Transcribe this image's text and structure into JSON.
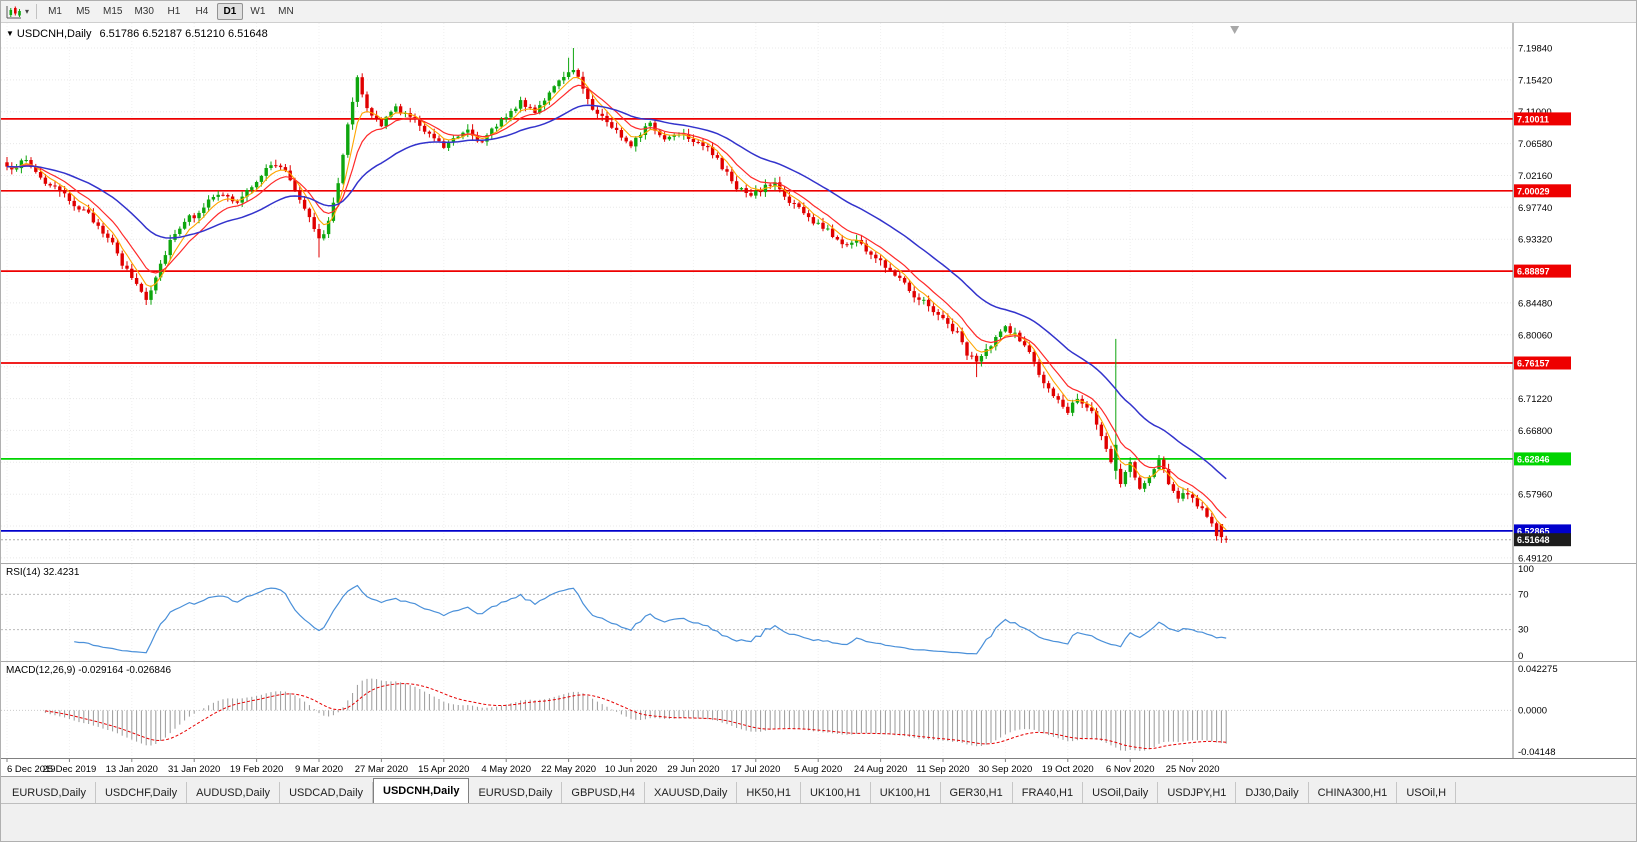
{
  "toolbar": {
    "timeframes": [
      {
        "label": "M1",
        "active": false
      },
      {
        "label": "M5",
        "active": false
      },
      {
        "label": "M15",
        "active": false
      },
      {
        "label": "M30",
        "active": false
      },
      {
        "label": "H1",
        "active": false
      },
      {
        "label": "H4",
        "active": false
      },
      {
        "label": "D1",
        "active": true
      },
      {
        "label": "W1",
        "active": false
      },
      {
        "label": "MN",
        "active": false
      }
    ],
    "caret": "▾"
  },
  "chart": {
    "collapse_arrow": "▼",
    "symbol_title": "USDCNH,Daily",
    "ohlc_text": "6.51786 6.52187 6.51210 6.51648"
  },
  "chart_data": {
    "type": "candlestick",
    "symbol": "USDCNH",
    "timeframe": "Daily",
    "ohlc": {
      "open": "6.51786",
      "high": "6.52187",
      "low": "6.51210",
      "close": "6.51648"
    },
    "bid": 6.51648,
    "bid_label": "6.51648",
    "candle_count": 255,
    "x_axis": {
      "labels": [
        "6 Dec 2019",
        "25 Dec 2019",
        "13 Jan 2020",
        "31 Jan 2020",
        "19 Feb 2020",
        "9 Mar 2020",
        "27 Mar 2020",
        "15 Apr 2020",
        "4 May 2020",
        "22 May 2020",
        "10 Jun 2020",
        "29 Jun 2020",
        "17 Jul 2020",
        "5 Aug 2020",
        "24 Aug 2020",
        "11 Sep 2020",
        "30 Sep 2020",
        "19 Oct 2020",
        "6 Nov 2020",
        "25 Nov 2020"
      ]
    },
    "y_axis": {
      "ticks": [
        "7.19840",
        "7.15420",
        "7.11000",
        "7.06580",
        "7.02160",
        "6.97740",
        "6.93320",
        "6.84480",
        "6.80060",
        "6.71220",
        "6.66800",
        "6.57960",
        "6.49120"
      ],
      "hidden_grid": [
        6.889,
        6.7564,
        6.6238,
        6.5354
      ]
    },
    "hlines": [
      {
        "price": 7.10011,
        "label": "7.10011",
        "color": "#EE0000"
      },
      {
        "price": 7.00029,
        "label": "7.00029",
        "color": "#EE0000"
      },
      {
        "price": 6.88897,
        "label": "6.88897",
        "color": "#EE0000"
      },
      {
        "price": 6.76157,
        "label": "6.76157",
        "color": "#EE0000"
      },
      {
        "price": 6.62846,
        "label": "6.62846",
        "color": "#00D400"
      },
      {
        "price": 6.52865,
        "label": "6.52865",
        "color": "#0000CC"
      }
    ],
    "price_anchors": [
      [
        0,
        7.03
      ],
      [
        4,
        7.042
      ],
      [
        8,
        7.012
      ],
      [
        13,
        6.988
      ],
      [
        17,
        6.966
      ],
      [
        21,
        6.938
      ],
      [
        24,
        6.898
      ],
      [
        27,
        6.872
      ],
      [
        29,
        6.85
      ],
      [
        31,
        6.882
      ],
      [
        34,
        6.932
      ],
      [
        37,
        6.96
      ],
      [
        39,
        6.966
      ],
      [
        42,
        6.986
      ],
      [
        45,
        6.996
      ],
      [
        48,
        6.982
      ],
      [
        52,
        7.016
      ],
      [
        55,
        7.036
      ],
      [
        58,
        7.03
      ],
      [
        60,
        7.002
      ],
      [
        63,
        6.967
      ],
      [
        65,
        6.932
      ],
      [
        67,
        6.956
      ],
      [
        69,
        7.012
      ],
      [
        71,
        7.096
      ],
      [
        73,
        7.156
      ],
      [
        75,
        7.112
      ],
      [
        78,
        7.092
      ],
      [
        81,
        7.116
      ],
      [
        84,
        7.102
      ],
      [
        87,
        7.086
      ],
      [
        89,
        7.076
      ],
      [
        91,
        7.062
      ],
      [
        93,
        7.076
      ],
      [
        96,
        7.086
      ],
      [
        99,
        7.066
      ],
      [
        102,
        7.092
      ],
      [
        104,
        7.106
      ],
      [
        107,
        7.122
      ],
      [
        110,
        7.112
      ],
      [
        113,
        7.136
      ],
      [
        116,
        7.156
      ],
      [
        118,
        7.172
      ],
      [
        120,
        7.142
      ],
      [
        122,
        7.116
      ],
      [
        125,
        7.096
      ],
      [
        128,
        7.076
      ],
      [
        130,
        7.066
      ],
      [
        132,
        7.082
      ],
      [
        134,
        7.092
      ],
      [
        137,
        7.072
      ],
      [
        140,
        7.082
      ],
      [
        143,
        7.072
      ],
      [
        146,
        7.062
      ],
      [
        149,
        7.032
      ],
      [
        152,
        7.006
      ],
      [
        155,
        6.992
      ],
      [
        157,
        7.002
      ],
      [
        160,
        7.012
      ],
      [
        162,
        6.992
      ],
      [
        165,
        6.976
      ],
      [
        168,
        6.956
      ],
      [
        171,
        6.946
      ],
      [
        174,
        6.926
      ],
      [
        177,
        6.932
      ],
      [
        180,
        6.912
      ],
      [
        183,
        6.896
      ],
      [
        186,
        6.882
      ],
      [
        189,
        6.856
      ],
      [
        192,
        6.842
      ],
      [
        195,
        6.822
      ],
      [
        198,
        6.802
      ],
      [
        200,
        6.776
      ],
      [
        202,
        6.762
      ],
      [
        205,
        6.786
      ],
      [
        208,
        6.812
      ],
      [
        210,
        6.802
      ],
      [
        213,
        6.776
      ],
      [
        215,
        6.746
      ],
      [
        218,
        6.712
      ],
      [
        221,
        6.696
      ],
      [
        223,
        6.716
      ],
      [
        226,
        6.692
      ],
      [
        228,
        6.656
      ],
      [
        230,
        6.626
      ],
      [
        232,
        6.596
      ],
      [
        234,
        6.622
      ],
      [
        236,
        6.586
      ],
      [
        238,
        6.602
      ],
      [
        240,
        6.626
      ],
      [
        242,
        6.596
      ],
      [
        244,
        6.576
      ],
      [
        246,
        6.582
      ],
      [
        248,
        6.566
      ],
      [
        250,
        6.546
      ],
      [
        252,
        6.524
      ],
      [
        254,
        6.5165
      ]
    ],
    "special_candles": [
      {
        "i": 29,
        "l": 6.842
      },
      {
        "i": 65,
        "l": 6.908
      },
      {
        "i": 117,
        "h": 7.185
      },
      {
        "i": 118,
        "h": 7.1984
      },
      {
        "i": 202,
        "l": 6.742
      },
      {
        "i": 231,
        "o": 6.612,
        "c": 6.648,
        "h": 6.795,
        "l": 6.6
      },
      {
        "i": 253,
        "o": 6.538,
        "c": 6.52,
        "l": 6.512
      },
      {
        "i": 254,
        "o": 6.51786,
        "h": 6.52187,
        "l": 6.5121,
        "c": 6.51648
      }
    ],
    "moving_averages": [
      {
        "period": 5,
        "color": "#FFA500",
        "width": 1.1
      },
      {
        "period": 10,
        "color": "#FF2A2A",
        "width": 1.2
      },
      {
        "period": 30,
        "color": "#3333CC",
        "width": 1.5
      }
    ],
    "colors": {
      "up": "#0EA60E",
      "down": "#E00000"
    },
    "rsi": {
      "label": "RSI(14) 32.4231",
      "period": 14,
      "value": 32.4231,
      "levels": [
        70,
        30
      ],
      "axis_labels": [
        "100",
        "70",
        "30",
        "0"
      ],
      "line_color": "#4A90D9"
    },
    "macd": {
      "label": "MACD(12,26,9) -0.029164 -0.026846",
      "fast": 12,
      "slow": 26,
      "signal": 9,
      "values": [
        "-0.029164",
        "-0.026846"
      ],
      "axis_labels": [
        "0.042275",
        "0.0000",
        "-0.04148"
      ],
      "histogram_color": "#9A9A9A",
      "signal_color": "#E60000"
    }
  },
  "tabs": [
    {
      "label": "EURUSD,Daily",
      "active": false
    },
    {
      "label": "USDCHF,Daily",
      "active": false
    },
    {
      "label": "AUDUSD,Daily",
      "active": false
    },
    {
      "label": "USDCAD,Daily",
      "active": false
    },
    {
      "label": "USDCNH,Daily",
      "active": true
    },
    {
      "label": "EURUSD,Daily",
      "active": false
    },
    {
      "label": "GBPUSD,H4",
      "active": false
    },
    {
      "label": "XAUUSD,Daily",
      "active": false
    },
    {
      "label": "HK50,H1",
      "active": false
    },
    {
      "label": "UK100,H1",
      "active": false
    },
    {
      "label": "UK100,H1",
      "active": false
    },
    {
      "label": "GER30,H1",
      "active": false
    },
    {
      "label": "FRA40,H1",
      "active": false
    },
    {
      "label": "USOil,Daily",
      "active": false
    },
    {
      "label": "USDJPY,H1",
      "active": false
    },
    {
      "label": "DJ30,Daily",
      "active": false
    },
    {
      "label": "CHINA300,H1",
      "active": false
    },
    {
      "label": "USOil,H",
      "active": false
    }
  ]
}
